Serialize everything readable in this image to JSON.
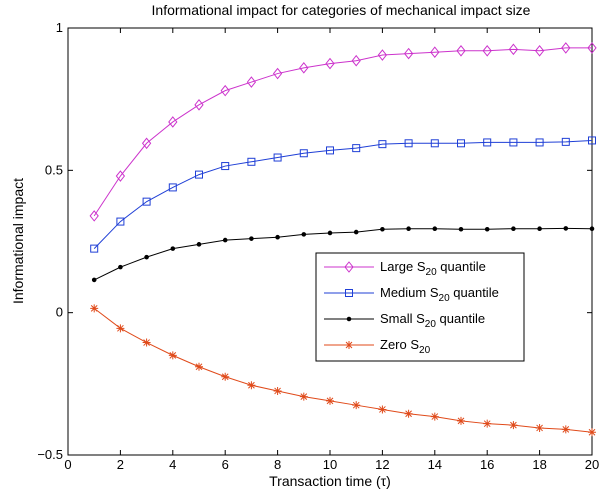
{
  "chart_data": {
    "type": "line",
    "title": "Informational impact for categories of mechanical impact size",
    "xlabel": "Transaction time (τ)",
    "ylabel": "Informational impact",
    "xlim": [
      0,
      20
    ],
    "ylim": [
      -0.5,
      1
    ],
    "xticks": [
      0,
      2,
      4,
      6,
      8,
      10,
      12,
      14,
      16,
      18,
      20
    ],
    "xtick_labels": [
      "0",
      "2",
      "4",
      "6",
      "8",
      "10",
      "12",
      "14",
      "16",
      "18",
      "20"
    ],
    "yticks": [
      -0.5,
      0,
      0.5,
      1
    ],
    "ytick_labels": [
      "−0.5",
      "0",
      "0.5",
      "1"
    ],
    "grid": false,
    "legend_position": "center-right",
    "x": [
      1,
      2,
      3,
      4,
      5,
      6,
      7,
      8,
      9,
      10,
      11,
      12,
      13,
      14,
      15,
      16,
      17,
      18,
      19,
      20
    ],
    "series": [
      {
        "legend_main": "Large S",
        "legend_sub": "20",
        "legend_tail": " quantile",
        "color": "#cc33cc",
        "marker": "diamond",
        "values": [
          0.34,
          0.48,
          0.595,
          0.67,
          0.73,
          0.78,
          0.81,
          0.84,
          0.86,
          0.875,
          0.885,
          0.905,
          0.91,
          0.915,
          0.92,
          0.92,
          0.925,
          0.92,
          0.93,
          0.93
        ]
      },
      {
        "legend_main": "Medium S",
        "legend_sub": "20",
        "legend_tail": " quantile",
        "color": "#1f3fd6",
        "marker": "square",
        "values": [
          0.225,
          0.32,
          0.39,
          0.44,
          0.485,
          0.515,
          0.53,
          0.545,
          0.56,
          0.57,
          0.578,
          0.592,
          0.595,
          0.595,
          0.595,
          0.598,
          0.598,
          0.598,
          0.6,
          0.605
        ]
      },
      {
        "legend_main": "Small S",
        "legend_sub": "20",
        "legend_tail": " quantile",
        "color": "#000000",
        "marker": "dot",
        "values": [
          0.115,
          0.16,
          0.195,
          0.225,
          0.24,
          0.255,
          0.26,
          0.265,
          0.275,
          0.28,
          0.283,
          0.293,
          0.295,
          0.295,
          0.293,
          0.293,
          0.295,
          0.295,
          0.296,
          0.295
        ]
      },
      {
        "legend_main": "Zero S",
        "legend_sub": "20",
        "legend_tail": "",
        "color": "#e04a1a",
        "marker": "star",
        "values": [
          0.015,
          -0.055,
          -0.105,
          -0.15,
          -0.19,
          -0.225,
          -0.255,
          -0.275,
          -0.295,
          -0.31,
          -0.325,
          -0.34,
          -0.355,
          -0.365,
          -0.38,
          -0.39,
          -0.395,
          -0.405,
          -0.41,
          -0.42
        ]
      }
    ]
  }
}
